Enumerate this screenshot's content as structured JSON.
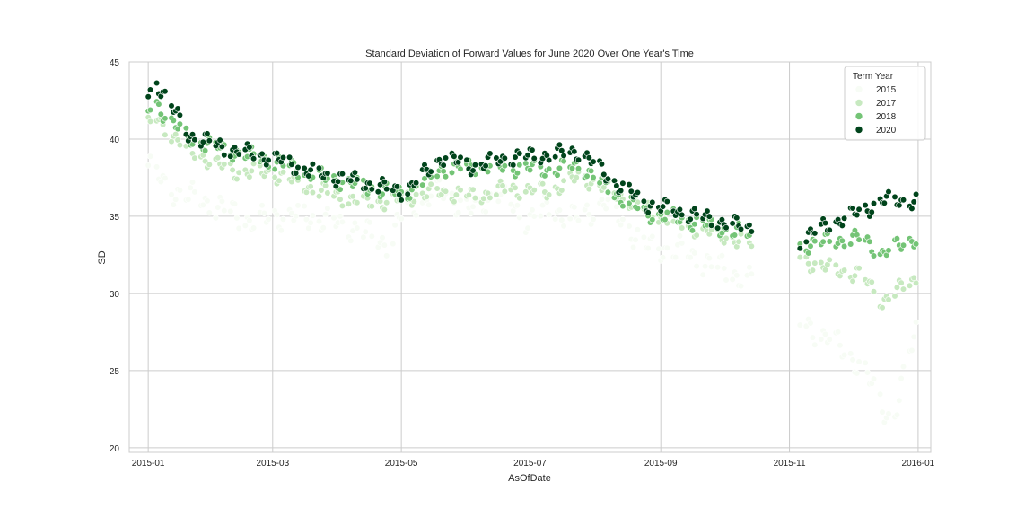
{
  "chart_data": {
    "type": "scatter",
    "title": "Standard Deviation of Forward Values for June 2020 Over One Year's Time",
    "xlabel": "AsOfDate",
    "ylabel": "SD",
    "x_range": [
      "2014-12-23",
      "2016-01-07"
    ],
    "ylim": [
      19.7,
      45.0
    ],
    "x_ticks": [
      "2015-01",
      "2015-03",
      "2015-05",
      "2015-07",
      "2015-09",
      "2015-11",
      "2016-01"
    ],
    "y_ticks": [
      20,
      25,
      30,
      35,
      40,
      45
    ],
    "grid": true,
    "legend": {
      "title": "Term Year",
      "placement": "top-right"
    },
    "series": [
      {
        "name": "2015",
        "color": "#f7fcf5",
        "anchors": [
          [
            "2015-01-01",
            38.3
          ],
          [
            "2015-01-10",
            36.8
          ],
          [
            "2015-02-01",
            35.8
          ],
          [
            "2015-02-20",
            34.6
          ],
          [
            "2015-03-01",
            35.0
          ],
          [
            "2015-03-20",
            34.9
          ],
          [
            "2015-04-10",
            34.2
          ],
          [
            "2015-04-25",
            33.2
          ],
          [
            "2015-05-03",
            35.6
          ],
          [
            "2015-05-20",
            36.6
          ],
          [
            "2015-06-05",
            35.2
          ],
          [
            "2015-06-15",
            36.8
          ],
          [
            "2015-06-28",
            34.8
          ],
          [
            "2015-07-10",
            35.5
          ],
          [
            "2015-07-25",
            34.8
          ],
          [
            "2015-08-05",
            36.0
          ],
          [
            "2015-08-25",
            33.0
          ],
          [
            "2015-09-10",
            32.8
          ],
          [
            "2015-10-14",
            30.8
          ],
          [
            "2015-11-06",
            28.1
          ],
          [
            "2015-11-20",
            27.1
          ],
          [
            "2015-12-05",
            25.3
          ],
          [
            "2015-12-20",
            21.5
          ],
          [
            "2015-12-31",
            27.8
          ]
        ]
      },
      {
        "name": "2017",
        "color": "#c7e9c0",
        "anchors": [
          [
            "2015-01-01",
            40.9
          ],
          [
            "2015-01-05",
            41.3
          ],
          [
            "2015-01-20",
            39.3
          ],
          [
            "2015-02-10",
            37.9
          ],
          [
            "2015-03-01",
            37.8
          ],
          [
            "2015-03-20",
            36.8
          ],
          [
            "2015-04-10",
            36.0
          ],
          [
            "2015-04-25",
            35.9
          ],
          [
            "2015-05-03",
            36.2
          ],
          [
            "2015-05-20",
            36.6
          ],
          [
            "2015-06-05",
            36.3
          ],
          [
            "2015-06-20",
            36.8
          ],
          [
            "2015-07-10",
            36.6
          ],
          [
            "2015-07-25",
            37.6
          ],
          [
            "2015-08-10",
            36.5
          ],
          [
            "2015-08-25",
            35.5
          ],
          [
            "2015-09-10",
            34.5
          ],
          [
            "2015-10-14",
            33.2
          ],
          [
            "2015-11-06",
            32.2
          ],
          [
            "2015-11-20",
            31.6
          ],
          [
            "2015-12-05",
            31.2
          ],
          [
            "2015-12-15",
            29.5
          ],
          [
            "2015-12-31",
            31.0
          ]
        ]
      },
      {
        "name": "2018",
        "color": "#74c476",
        "anchors": [
          [
            "2015-01-01",
            41.9
          ],
          [
            "2015-01-05",
            42.2
          ],
          [
            "2015-01-20",
            40.0
          ],
          [
            "2015-02-10",
            39.2
          ],
          [
            "2015-03-01",
            38.6
          ],
          [
            "2015-03-20",
            37.7
          ],
          [
            "2015-04-10",
            37.0
          ],
          [
            "2015-04-25",
            36.6
          ],
          [
            "2015-05-03",
            36.5
          ],
          [
            "2015-05-20",
            38.1
          ],
          [
            "2015-06-05",
            38.2
          ],
          [
            "2015-06-20",
            38.2
          ],
          [
            "2015-07-10",
            38.0
          ],
          [
            "2015-07-25",
            38.3
          ],
          [
            "2015-08-10",
            36.5
          ],
          [
            "2015-08-25",
            35.2
          ],
          [
            "2015-09-10",
            34.8
          ],
          [
            "2015-10-14",
            33.8
          ],
          [
            "2015-11-06",
            33.1
          ],
          [
            "2015-11-20",
            33.4
          ],
          [
            "2015-12-05",
            33.6
          ],
          [
            "2015-12-15",
            32.6
          ],
          [
            "2015-12-31",
            33.6
          ]
        ]
      },
      {
        "name": "2020",
        "color": "#00441b",
        "anchors": [
          [
            "2015-01-01",
            42.7
          ],
          [
            "2015-01-05",
            43.7
          ],
          [
            "2015-01-20",
            40.3
          ],
          [
            "2015-02-10",
            39.3
          ],
          [
            "2015-03-01",
            38.8
          ],
          [
            "2015-03-20",
            37.8
          ],
          [
            "2015-04-10",
            37.3
          ],
          [
            "2015-04-25",
            36.8
          ],
          [
            "2015-05-03",
            36.6
          ],
          [
            "2015-05-20",
            38.8
          ],
          [
            "2015-06-05",
            38.2
          ],
          [
            "2015-06-20",
            38.8
          ],
          [
            "2015-07-10",
            39.0
          ],
          [
            "2015-07-25",
            39.2
          ],
          [
            "2015-08-10",
            37.2
          ],
          [
            "2015-08-25",
            35.8
          ],
          [
            "2015-09-10",
            35.3
          ],
          [
            "2015-10-14",
            34.2
          ],
          [
            "2015-11-06",
            33.5
          ],
          [
            "2015-11-20",
            34.5
          ],
          [
            "2015-12-05",
            35.3
          ],
          [
            "2015-12-15",
            36.0
          ],
          [
            "2015-12-31",
            36.0
          ]
        ]
      }
    ]
  }
}
